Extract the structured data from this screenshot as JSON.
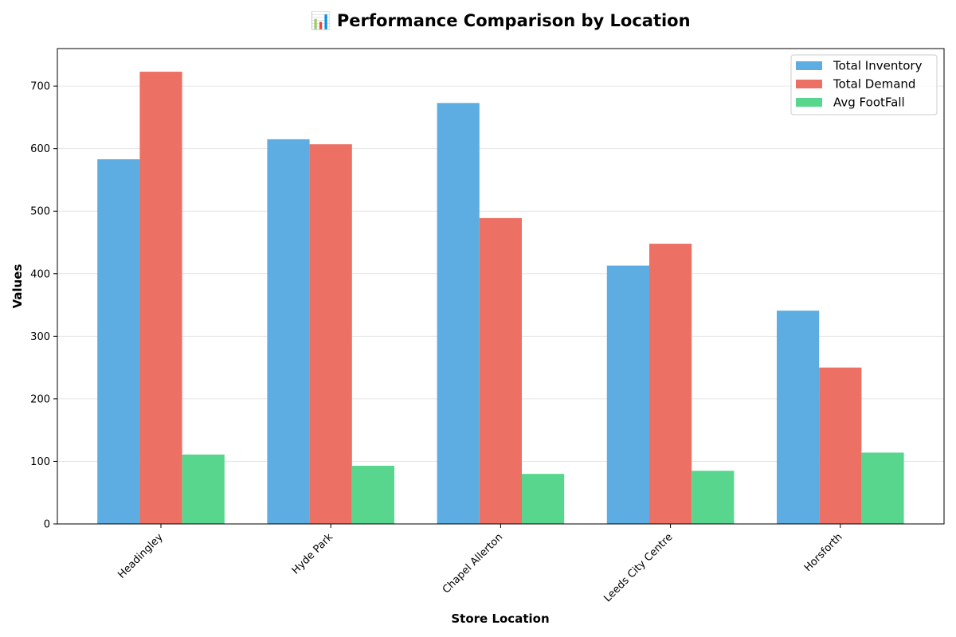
{
  "chart_data": {
    "type": "bar",
    "title": "📊 Performance Comparison by Location",
    "xlabel": "Store Location",
    "ylabel": "Values",
    "categories": [
      "Headingley",
      "Hyde Park",
      "Chapel Allerton",
      "Leeds City Centre",
      "Horsforth"
    ],
    "series": [
      {
        "name": "Total Inventory",
        "color": "#5DADE2",
        "values": [
          583,
          615,
          673,
          413,
          341
        ]
      },
      {
        "name": "Total Demand",
        "color": "#EC7063",
        "values": [
          723,
          607,
          489,
          448,
          250
        ]
      },
      {
        "name": "Avg FootFall",
        "color": "#58D68D",
        "values": [
          111,
          93,
          80,
          85,
          114
        ]
      }
    ],
    "ylim": [
      0,
      760
    ],
    "yticks": [
      0,
      100,
      200,
      300,
      400,
      500,
      600,
      700
    ],
    "grid": "y-axis, light",
    "legend_position": "top-right"
  }
}
